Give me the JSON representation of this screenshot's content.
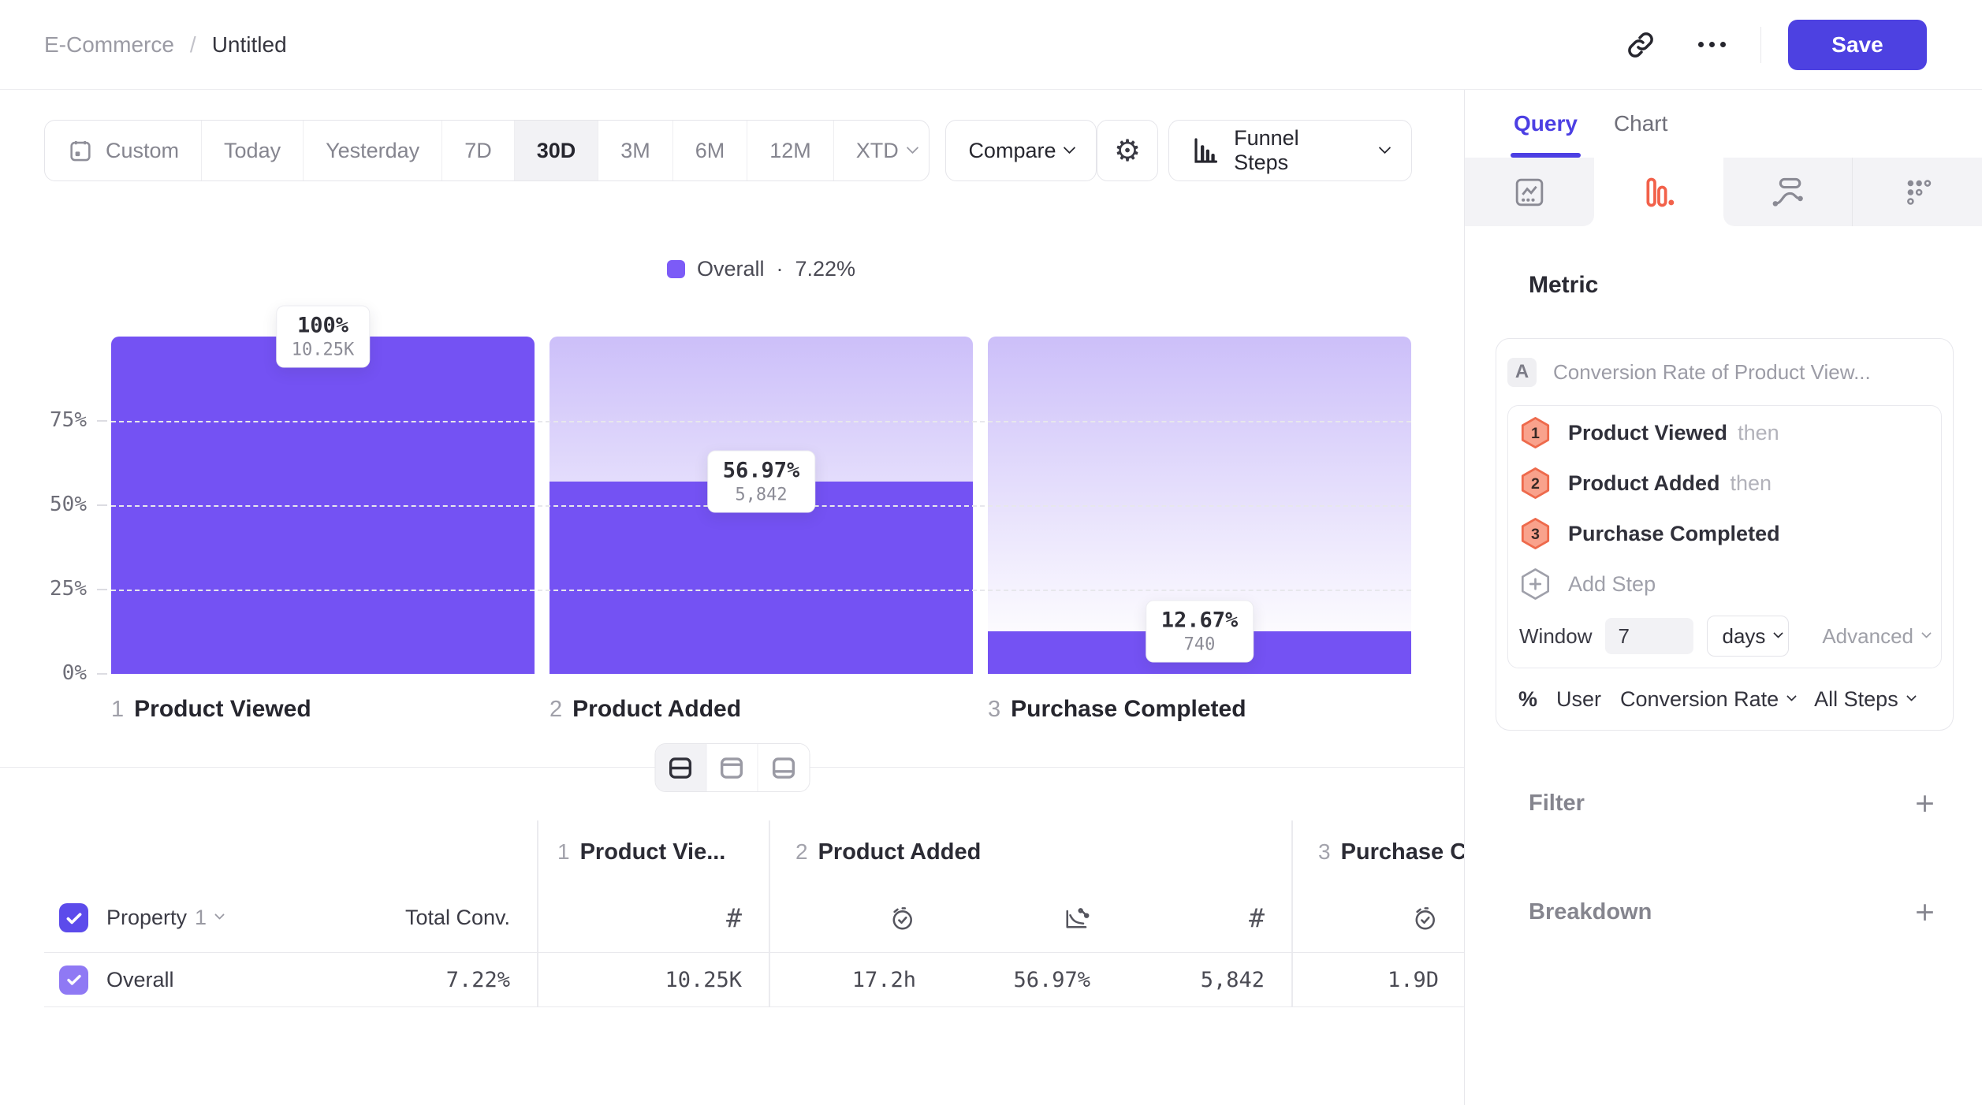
{
  "header": {
    "breadcrumb": {
      "parent": "E-Commerce",
      "separator": "/",
      "current": "Untitled"
    },
    "save_label": "Save",
    "icons": [
      "link-icon",
      "more-options-icon"
    ]
  },
  "toolbar": {
    "date_ranges": [
      {
        "label": "Custom",
        "icon": "calendar"
      },
      {
        "label": "Today"
      },
      {
        "label": "Yesterday"
      },
      {
        "label": "7D"
      },
      {
        "label": "30D",
        "selected": true
      },
      {
        "label": "3M"
      },
      {
        "label": "6M"
      },
      {
        "label": "12M"
      },
      {
        "label": "XTD",
        "chevron": true
      }
    ],
    "compare_label": "Compare",
    "settings_icon": "gear-icon",
    "chart_type_label": "Funnel Steps"
  },
  "chart_data": {
    "type": "bar",
    "subtype": "funnel-steps",
    "legend": {
      "label": "Overall",
      "separator": "·",
      "value": "7.22%",
      "color": "#7C5BF7"
    },
    "ylim": [
      0,
      100
    ],
    "grid": "dashed horizontal at 25/50/75",
    "y_ticks": [
      {
        "label": "75%",
        "pct": 75
      },
      {
        "label": "50%",
        "pct": 50
      },
      {
        "label": "25%",
        "pct": 25
      },
      {
        "label": "0%",
        "pct": 0
      }
    ],
    "steps": [
      {
        "index": 1,
        "label": "Product Viewed",
        "pct": 100,
        "pct_label": "100%",
        "count": 10250,
        "count_label": "10.25K"
      },
      {
        "index": 2,
        "label": "Product Added",
        "pct": 56.97,
        "pct_label": "56.97%",
        "count": 5842,
        "count_label": "5,842"
      },
      {
        "index": 3,
        "label": "Purchase Completed",
        "pct": 12.67,
        "pct_label": "12.67%",
        "count": 740,
        "count_label": "740"
      }
    ]
  },
  "layout_toggles": [
    "split-horizontal",
    "panel-top",
    "panel-bottom"
  ],
  "table": {
    "property": {
      "label": "Property",
      "index": "1"
    },
    "total_conv_header": "Total Conv.",
    "groups": [
      {
        "num": "1",
        "label": "Product Vie..."
      },
      {
        "num": "2",
        "label": "Product Added"
      },
      {
        "num": "3",
        "label": "Purchase C"
      }
    ],
    "column_icons": [
      "hash",
      "stopwatch-check",
      "conversion-chart",
      "hash",
      "stopwatch-check"
    ],
    "row": {
      "label": "Overall",
      "total_conv": "7.22%",
      "values": [
        "10.25K",
        "17.2h",
        "56.97%",
        "5,842",
        "1.9D"
      ]
    }
  },
  "panel": {
    "tabs": [
      "Query",
      "Chart"
    ],
    "active_tab": "Query",
    "icon_tabs": [
      "line-chart",
      "funnel-bars",
      "flow",
      "grid-dots"
    ],
    "active_icon_tab": "funnel-bars",
    "metric_heading": "Metric",
    "metric": {
      "badge": "A",
      "title": "Conversion Rate of Product View...",
      "steps": [
        {
          "num": "1",
          "label": "Product Viewed",
          "suffix": "then"
        },
        {
          "num": "2",
          "label": "Product Added",
          "suffix": "then"
        },
        {
          "num": "3",
          "label": "Purchase Completed",
          "suffix": ""
        }
      ],
      "add_step_label": "Add Step",
      "window": {
        "label": "Window",
        "value": "7",
        "unit": "days",
        "advanced_label": "Advanced"
      },
      "measure": {
        "prefix": "%",
        "entity": "User",
        "metric": "Conversion Rate",
        "scope": "All Steps"
      }
    },
    "filter_label": "Filter",
    "breakdown_label": "Breakdown"
  },
  "colors": {
    "bar_purple": "#7452F3",
    "ghost_purple": "#CCBFF9",
    "accent_indigo": "#4D41E1",
    "active_tab_purple": "#4C3FE3",
    "funnel_icon_orange": "#F2614A",
    "hexagon_fill": "#F9A28C",
    "hexagon_border": "#EE6A4C",
    "checkbox_header": "#5C4BEB",
    "checkbox_row": "#8F79F4"
  }
}
